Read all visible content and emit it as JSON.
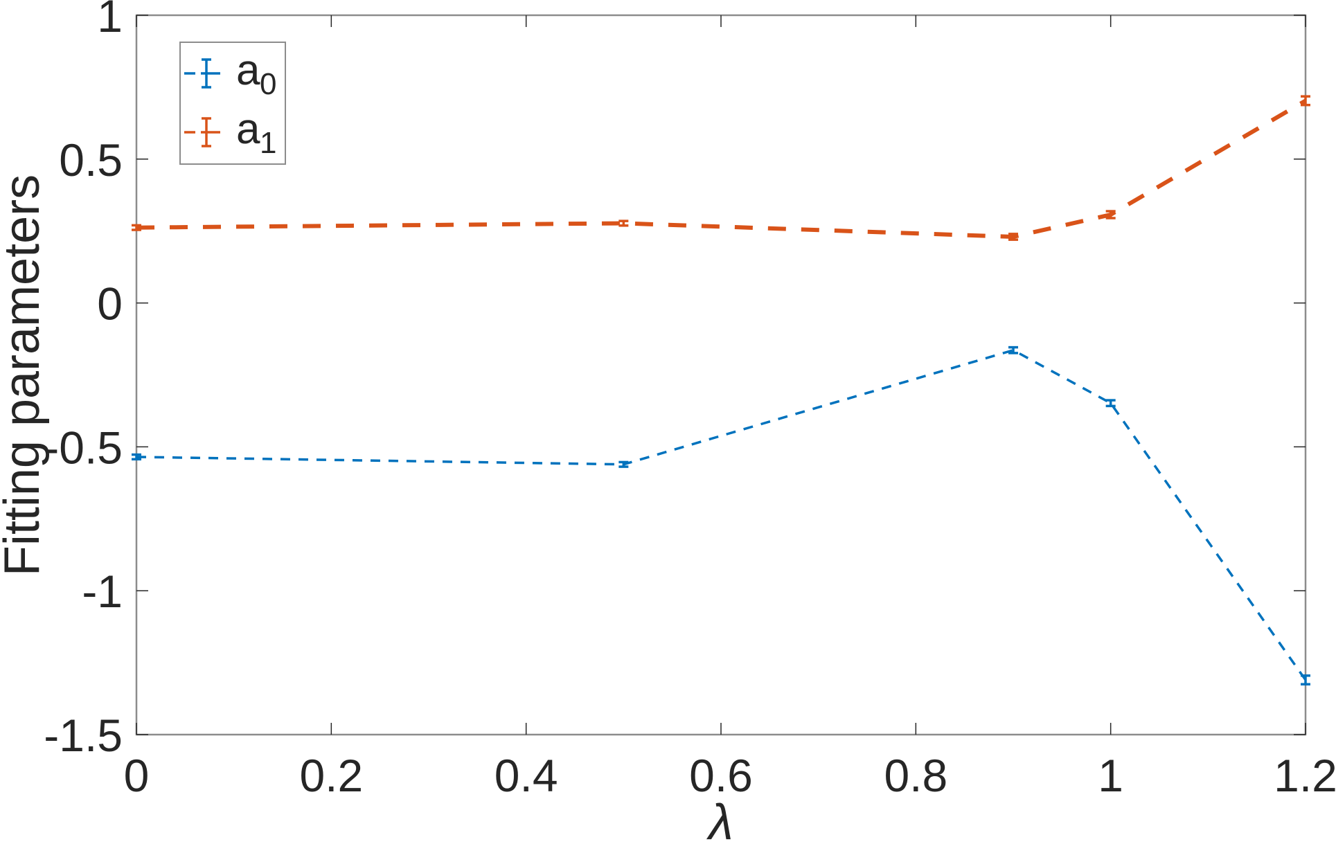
{
  "chart_data": {
    "type": "line",
    "title": "",
    "xlabel": "λ",
    "ylabel": "Fitting parameters",
    "xlim": [
      0,
      1.2
    ],
    "ylim": [
      -1.5,
      1
    ],
    "xticks": [
      0,
      0.2,
      0.4,
      0.6,
      0.8,
      1,
      1.2
    ],
    "xtick_labels": [
      "0",
      "0.2",
      "0.4",
      "0.6",
      "0.8",
      "1",
      "1.2"
    ],
    "yticks": [
      -1.5,
      -1,
      -0.5,
      0,
      0.5,
      1
    ],
    "ytick_labels": [
      "-1.5",
      "-1",
      "-0.5",
      "0",
      "0.5",
      "1"
    ],
    "grid": false,
    "legend_placement": "top-left",
    "x": [
      0,
      0.5,
      0.9,
      1.0,
      1.2
    ],
    "series": [
      {
        "name": "a",
        "subscript": "0",
        "color": "#0072BD",
        "values": [
          -0.535,
          -0.561,
          -0.164,
          -0.348,
          -1.31
        ],
        "errors": [
          0.008,
          0.008,
          0.01,
          0.01,
          0.015
        ],
        "line_style": "dashed-thin"
      },
      {
        "name": "a",
        "subscript": "1",
        "color": "#D95319",
        "values": [
          0.262,
          0.277,
          0.23,
          0.307,
          0.703
        ],
        "errors": [
          0.008,
          0.008,
          0.01,
          0.012,
          0.015
        ],
        "line_style": "dashed-thick"
      }
    ]
  }
}
